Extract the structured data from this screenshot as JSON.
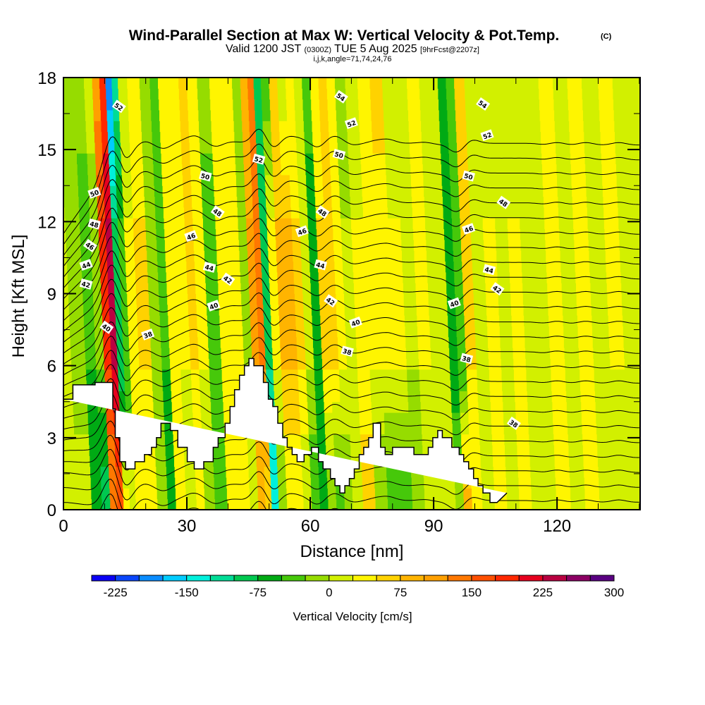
{
  "chart_data": {
    "type": "heatmap",
    "title": "Wind-Parallel Section at Max W: Vertical Velocity & Pot.Temp.",
    "title_suffix": "(C)",
    "subtitle_valid": "Valid 1200 JST",
    "subtitle_utc": "(0300Z)",
    "subtitle_date": "TUE 5 Aug 2025",
    "subtitle_fcst": "[9hrFcst@2207z]",
    "subtitle_params": "i,j,k,angle=71,74,24,76",
    "xlabel": "Distance [nm]",
    "ylabel": "Height [Kft MSL]",
    "xlim": [
      0,
      140
    ],
    "ylim": [
      0,
      18
    ],
    "xticks": [
      0,
      30,
      60,
      90,
      120
    ],
    "xtick_labels": [
      "0",
      "30",
      "60",
      "90",
      "120"
    ],
    "yticks": [
      0,
      3,
      6,
      9,
      12,
      15,
      18
    ],
    "ytick_labels": [
      "0",
      "3",
      "6",
      "9",
      "12",
      "15",
      "18"
    ],
    "x_minor_step": 10,
    "y_minor_step": 1.5,
    "colorbar": {
      "label": "Vertical Velocity [cm/s]",
      "levels": [
        -250,
        -225,
        -200,
        -175,
        -150,
        -125,
        -100,
        -75,
        -50,
        -25,
        0,
        25,
        50,
        75,
        100,
        125,
        150,
        175,
        200,
        225,
        250,
        275,
        300,
        325
      ],
      "tick_values": [
        -225,
        -150,
        -75,
        0,
        75,
        150,
        225,
        300
      ],
      "tick_labels": [
        "-225",
        "-150",
        "-75",
        "0",
        "75",
        "150",
        "225",
        "300"
      ],
      "colors": [
        "#0a00f5",
        "#0a46fa",
        "#0a8cff",
        "#00ccff",
        "#00f0dc",
        "#00dc96",
        "#00c850",
        "#00aa14",
        "#46c80a",
        "#96dc00",
        "#d2f000",
        "#fff500",
        "#ffd200",
        "#ffb400",
        "#ffa000",
        "#ff7800",
        "#ff5000",
        "#ff2800",
        "#e6001e",
        "#b90041",
        "#8c0064",
        "#5a0082"
      ]
    },
    "theta_contours": {
      "interval_K": 2,
      "labeled_values": [
        36,
        38,
        40,
        42,
        44,
        46,
        48,
        50,
        52,
        54
      ],
      "labels": [
        {
          "value": "52",
          "x_nm": 13.5,
          "z_kft": 16.8
        },
        {
          "value": "50",
          "x_nm": 7.5,
          "z_kft": 13.2
        },
        {
          "value": "48",
          "x_nm": 7.5,
          "z_kft": 11.9
        },
        {
          "value": "46",
          "x_nm": 6.5,
          "z_kft": 11.0
        },
        {
          "value": "44",
          "x_nm": 5.5,
          "z_kft": 10.2
        },
        {
          "value": "42",
          "x_nm": 5.5,
          "z_kft": 9.4
        },
        {
          "value": "40",
          "x_nm": 10.5,
          "z_kft": 7.6
        },
        {
          "value": "38",
          "x_nm": 20.5,
          "z_kft": 7.3
        },
        {
          "value": "50",
          "x_nm": 34.5,
          "z_kft": 13.9
        },
        {
          "value": "48",
          "x_nm": 37.5,
          "z_kft": 12.4
        },
        {
          "value": "46",
          "x_nm": 31.0,
          "z_kft": 11.4
        },
        {
          "value": "44",
          "x_nm": 35.5,
          "z_kft": 10.1
        },
        {
          "value": "42",
          "x_nm": 40.0,
          "z_kft": 9.6
        },
        {
          "value": "40",
          "x_nm": 36.5,
          "z_kft": 8.5
        },
        {
          "value": "52",
          "x_nm": 47.5,
          "z_kft": 14.6
        },
        {
          "value": "54",
          "x_nm": 67.5,
          "z_kft": 17.2
        },
        {
          "value": "52",
          "x_nm": 70.0,
          "z_kft": 16.1
        },
        {
          "value": "50",
          "x_nm": 67.0,
          "z_kft": 14.8
        },
        {
          "value": "48",
          "x_nm": 63.0,
          "z_kft": 12.4
        },
        {
          "value": "46",
          "x_nm": 58.0,
          "z_kft": 11.6
        },
        {
          "value": "44",
          "x_nm": 62.5,
          "z_kft": 10.2
        },
        {
          "value": "42",
          "x_nm": 65.0,
          "z_kft": 8.7
        },
        {
          "value": "40",
          "x_nm": 71.0,
          "z_kft": 7.8
        },
        {
          "value": "38",
          "x_nm": 69.0,
          "z_kft": 6.6
        },
        {
          "value": "54",
          "x_nm": 102.0,
          "z_kft": 16.9
        },
        {
          "value": "52",
          "x_nm": 103.0,
          "z_kft": 15.6
        },
        {
          "value": "50",
          "x_nm": 98.5,
          "z_kft": 13.9
        },
        {
          "value": "48",
          "x_nm": 107.0,
          "z_kft": 12.8
        },
        {
          "value": "46",
          "x_nm": 98.5,
          "z_kft": 11.7
        },
        {
          "value": "44",
          "x_nm": 103.5,
          "z_kft": 10.0
        },
        {
          "value": "42",
          "x_nm": 105.5,
          "z_kft": 9.2
        },
        {
          "value": "40",
          "x_nm": 95.0,
          "z_kft": 8.6
        },
        {
          "value": "38",
          "x_nm": 98.0,
          "z_kft": 6.3
        },
        {
          "value": "38",
          "x_nm": 109.5,
          "z_kft": 3.6
        }
      ]
    },
    "velocity_columns": [
      {
        "x_nm": 0,
        "w_top": 0,
        "w_mid": 0,
        "w_low": 25
      },
      {
        "x_nm": 4,
        "w_top": 0,
        "w_mid": -25,
        "w_low": 25
      },
      {
        "x_nm": 7,
        "w_top": 0,
        "w_mid": -50,
        "w_low": -75
      },
      {
        "x_nm": 9,
        "w_top": 25,
        "w_mid": -25,
        "w_low": -100
      },
      {
        "x_nm": 11,
        "w_top": 100,
        "w_mid": 175,
        "w_low": 125
      },
      {
        "x_nm": 12.5,
        "w_top": 175,
        "w_mid": 225,
        "w_low": 150
      },
      {
        "x_nm": 14,
        "w_top": -200,
        "w_mid": -100,
        "w_low": 50
      },
      {
        "x_nm": 15.5,
        "w_top": -125,
        "w_mid": -50,
        "w_low": 25
      },
      {
        "x_nm": 17,
        "w_top": 0,
        "w_mid": 25,
        "w_low": 50
      },
      {
        "x_nm": 20,
        "w_top": 25,
        "w_mid": 50,
        "w_low": 25
      },
      {
        "x_nm": 23,
        "w_top": 0,
        "w_mid": -25,
        "w_low": 0
      },
      {
        "x_nm": 25,
        "w_top": -25,
        "w_mid": -50,
        "w_low": -75
      },
      {
        "x_nm": 27,
        "w_top": 25,
        "w_mid": 25,
        "w_low": 25
      },
      {
        "x_nm": 30,
        "w_top": 50,
        "w_mid": 25,
        "w_low": 0
      },
      {
        "x_nm": 32,
        "w_top": 75,
        "w_mid": 50,
        "w_low": 25
      },
      {
        "x_nm": 34,
        "w_top": 25,
        "w_mid": 25,
        "w_low": -25
      },
      {
        "x_nm": 37,
        "w_top": 0,
        "w_mid": -50,
        "w_low": -50
      },
      {
        "x_nm": 40,
        "w_top": 25,
        "w_mid": 25,
        "w_low": 25
      },
      {
        "x_nm": 43,
        "w_top": 25,
        "w_mid": 25,
        "w_low": 50
      },
      {
        "x_nm": 45,
        "w_top": 0,
        "w_mid": -25,
        "w_low": 25
      },
      {
        "x_nm": 47,
        "w_top": 75,
        "w_mid": 100,
        "w_low": 75
      },
      {
        "x_nm": 48.5,
        "w_top": 150,
        "w_mid": 125,
        "w_low": 50
      },
      {
        "x_nm": 50,
        "w_top": -75,
        "w_mid": -100,
        "w_low": -150
      },
      {
        "x_nm": 52,
        "w_top": -50,
        "w_mid": 25,
        "w_low": -25
      },
      {
        "x_nm": 54,
        "w_top": 50,
        "w_mid": 75,
        "w_low": 25
      },
      {
        "x_nm": 56,
        "w_top": 0,
        "w_mid": 75,
        "w_low": 25
      },
      {
        "x_nm": 58,
        "w_top": 25,
        "w_mid": 50,
        "w_low": 0
      },
      {
        "x_nm": 60,
        "w_top": 25,
        "w_mid": 0,
        "w_low": -50
      },
      {
        "x_nm": 62,
        "w_top": -25,
        "w_mid": -75,
        "w_low": -75
      },
      {
        "x_nm": 64,
        "w_top": 25,
        "w_mid": 50,
        "w_low": -25
      },
      {
        "x_nm": 66,
        "w_top": 75,
        "w_mid": 50,
        "w_low": -50
      },
      {
        "x_nm": 68,
        "w_top": 25,
        "w_mid": 25,
        "w_low": -25
      },
      {
        "x_nm": 70,
        "w_top": -25,
        "w_mid": 0,
        "w_low": 25
      },
      {
        "x_nm": 73,
        "w_top": 0,
        "w_mid": 25,
        "w_low": 75
      },
      {
        "x_nm": 76,
        "w_top": 50,
        "w_mid": 25,
        "w_low": -25
      },
      {
        "x_nm": 79,
        "w_top": 75,
        "w_mid": 25,
        "w_low": -50
      },
      {
        "x_nm": 82,
        "w_top": 0,
        "w_mid": 25,
        "w_low": -50
      },
      {
        "x_nm": 85,
        "w_top": 25,
        "w_mid": 0,
        "w_low": -25
      },
      {
        "x_nm": 88,
        "w_top": 25,
        "w_mid": 25,
        "w_low": 0
      },
      {
        "x_nm": 91,
        "w_top": 0,
        "w_mid": 0,
        "w_low": 25
      },
      {
        "x_nm": 93,
        "w_top": 25,
        "w_mid": 0,
        "w_low": 25
      },
      {
        "x_nm": 95,
        "w_top": -50,
        "w_mid": -75,
        "w_low": 0
      },
      {
        "x_nm": 97,
        "w_top": -25,
        "w_mid": -50,
        "w_low": 100
      },
      {
        "x_nm": 99,
        "w_top": 75,
        "w_mid": 50,
        "w_low": 25
      },
      {
        "x_nm": 102,
        "w_top": 25,
        "w_mid": 0,
        "w_low": 0
      },
      {
        "x_nm": 105,
        "w_top": 0,
        "w_mid": 25,
        "w_low": 25
      },
      {
        "x_nm": 108,
        "w_top": 25,
        "w_mid": 0,
        "w_low": 0
      },
      {
        "x_nm": 111,
        "w_top": 0,
        "w_mid": 25,
        "w_low": 25
      },
      {
        "x_nm": 114,
        "w_top": 25,
        "w_mid": 0,
        "w_low": 0
      },
      {
        "x_nm": 117,
        "w_top": 0,
        "w_mid": 0,
        "w_low": 0
      },
      {
        "x_nm": 120,
        "w_top": 25,
        "w_mid": 25,
        "w_low": 25
      },
      {
        "x_nm": 124,
        "w_top": 0,
        "w_mid": 0,
        "w_low": 0
      },
      {
        "x_nm": 127,
        "w_top": 25,
        "w_mid": 25,
        "w_low": 25
      },
      {
        "x_nm": 131,
        "w_top": 0,
        "w_mid": 0,
        "w_low": 0
      },
      {
        "x_nm": 135,
        "w_top": 25,
        "w_mid": 25,
        "w_low": 0
      },
      {
        "x_nm": 138,
        "w_top": 0,
        "w_mid": 0,
        "w_low": 25
      }
    ],
    "terrain": {
      "x_nm": [
        0,
        2.3,
        2.3,
        7.7,
        7.7,
        12.0,
        12.0,
        12.6,
        12.6,
        13.7,
        13.7,
        15.1,
        15.1,
        17.4,
        17.4,
        19.7,
        19.7,
        21.4,
        21.4,
        22.6,
        22.6,
        23.7,
        23.7,
        26.0,
        26.0,
        27.8,
        27.8,
        30.1,
        30.1,
        31.8,
        31.8,
        33.0,
        33.0,
        34.1,
        34.1,
        36.4,
        36.4,
        37.6,
        37.6,
        39.3,
        39.3,
        40.5,
        40.5,
        41.6,
        41.6,
        42.8,
        42.8,
        44.0,
        44.0,
        45.1,
        45.1,
        46.3,
        46.3,
        48.6,
        48.6,
        49.8,
        49.8,
        50.9,
        50.9,
        52.1,
        52.1,
        53.3,
        53.3,
        54.4,
        54.4,
        55.6,
        55.6,
        56.8,
        56.8,
        58.5,
        58.5,
        60.3,
        60.3,
        62.0,
        62.0,
        63.1,
        63.1,
        64.9,
        64.9,
        66.0,
        66.0,
        67.2,
        67.2,
        68.4,
        68.4,
        69.5,
        69.5,
        70.7,
        70.7,
        71.9,
        71.9,
        73.0,
        73.0,
        74.2,
        74.2,
        75.3,
        75.3,
        77.1,
        77.1,
        78.2,
        78.2,
        80.0,
        80.0,
        81.1,
        81.1,
        82.3,
        82.3,
        83.4,
        83.4,
        85.2,
        85.2,
        88.7,
        88.7,
        89.8,
        89.8,
        91.0,
        91.0,
        92.1,
        92.1,
        94.4,
        94.4,
        96.2,
        96.2,
        97.3,
        97.3,
        98.5,
        98.5,
        99.7,
        99.7,
        100.8,
        100.8,
        102.0,
        102.0,
        103.7,
        103.7,
        105.4,
        105.4,
        107.8,
        107.8,
        114.2,
        114.2,
        124.1,
        124.1,
        129.3,
        129.3,
        140.2
      ],
      "z_kft": [
        4.6,
        4.6,
        5.2,
        5.2,
        5.3,
        5.3,
        4.2,
        4.2,
        3.0,
        3.0,
        2.0,
        2.0,
        1.7,
        1.7,
        2.0,
        2.0,
        2.3,
        2.3,
        2.6,
        2.6,
        3.0,
        3.0,
        3.6,
        3.6,
        3.3,
        3.3,
        2.6,
        2.6,
        2.0,
        2.0,
        1.7,
        1.7,
        1.7,
        1.7,
        2.0,
        2.0,
        2.6,
        2.6,
        3.0,
        3.0,
        3.6,
        3.6,
        4.3,
        4.3,
        5.0,
        5.0,
        5.6,
        5.6,
        6.0,
        6.0,
        6.3,
        6.3,
        6.0,
        6.0,
        5.3,
        5.3,
        4.6,
        4.6,
        4.3,
        4.3,
        3.6,
        3.6,
        3.0,
        3.0,
        2.6,
        2.6,
        2.3,
        2.3,
        2.0,
        2.0,
        2.3,
        2.3,
        2.6,
        2.6,
        2.0,
        2.0,
        1.7,
        1.7,
        1.3,
        1.3,
        1.0,
        1.0,
        0.7,
        0.7,
        1.0,
        1.0,
        1.3,
        1.3,
        1.7,
        1.7,
        2.3,
        2.3,
        2.6,
        2.6,
        3.0,
        3.0,
        3.6,
        3.6,
        2.6,
        2.6,
        2.3,
        2.3,
        2.6,
        2.6,
        2.6,
        2.6,
        2.6,
        2.6,
        2.6,
        2.6,
        2.3,
        2.3,
        2.6,
        2.6,
        3.0,
        3.0,
        3.3,
        3.3,
        3.0,
        3.0,
        2.6,
        2.6,
        2.3,
        2.3,
        2.0,
        2.0,
        1.7,
        1.7,
        1.3,
        1.3,
        1.0,
        1.0,
        0.7,
        0.7,
        0.3,
        0.3,
        0.3,
        0.7,
        0.7
      ]
    }
  }
}
